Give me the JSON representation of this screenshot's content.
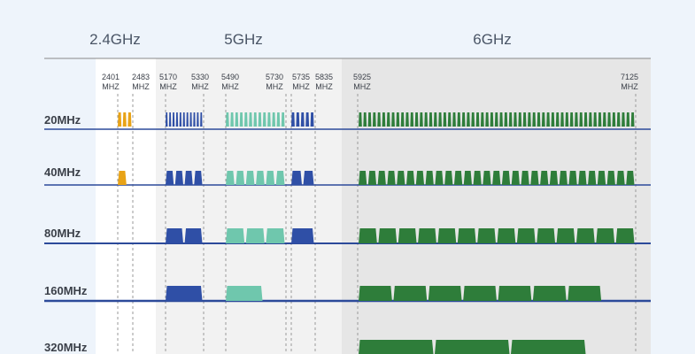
{
  "band_titles": {
    "b24": "2.4GHz",
    "b5": "5GHz",
    "b6": "6GHz"
  },
  "frequency_markers": [
    {
      "value": "2401",
      "unit": "MHZ"
    },
    {
      "value": "2483",
      "unit": "MHZ"
    },
    {
      "value": "5170",
      "unit": "MHZ"
    },
    {
      "value": "5330",
      "unit": "MHZ"
    },
    {
      "value": "5490",
      "unit": "MHZ"
    },
    {
      "value": "5730",
      "unit": "MHZ"
    },
    {
      "value": "5735",
      "unit": "MHZ"
    },
    {
      "value": "5835",
      "unit": "MHZ"
    },
    {
      "value": "5925",
      "unit": "MHZ"
    },
    {
      "value": "7125",
      "unit": "MHZ"
    }
  ],
  "rows": [
    {
      "label": "20MHz",
      "channels": {
        "b24": 3,
        "u1": 11,
        "u2": 13,
        "u3": 5,
        "b6": 59
      }
    },
    {
      "label": "40MHz",
      "channels": {
        "b24": 1,
        "u1": 4,
        "u2": 6,
        "u3": 2,
        "b6": 29
      }
    },
    {
      "label": "80MHz",
      "channels": {
        "b24": 0,
        "u1": 2,
        "u2": 3,
        "u3": 1,
        "b6": 14
      }
    },
    {
      "label": "160MHz",
      "channels": {
        "b24": 0,
        "u1": 1,
        "u2": 1,
        "u3": 0,
        "b6": 7
      }
    },
    {
      "label": "320MHz",
      "channels": {
        "b24": 0,
        "u1": 0,
        "u2": 0,
        "u3": 0,
        "b6": 3
      }
    }
  ],
  "colors": {
    "background": "#eef4fb",
    "panel_24": "#ffffff",
    "panel_5": "#f2f2f2",
    "panel_6": "#e6e6e6",
    "ch_24": "#e8a317",
    "ch_unii1": "#2f4fa6",
    "ch_unii2": "#6fc7ad",
    "ch_unii3": "#2f4fa6",
    "ch_6": "#2e7d3a",
    "baseline": "#2c4a9a",
    "divider": "#888888"
  }
}
